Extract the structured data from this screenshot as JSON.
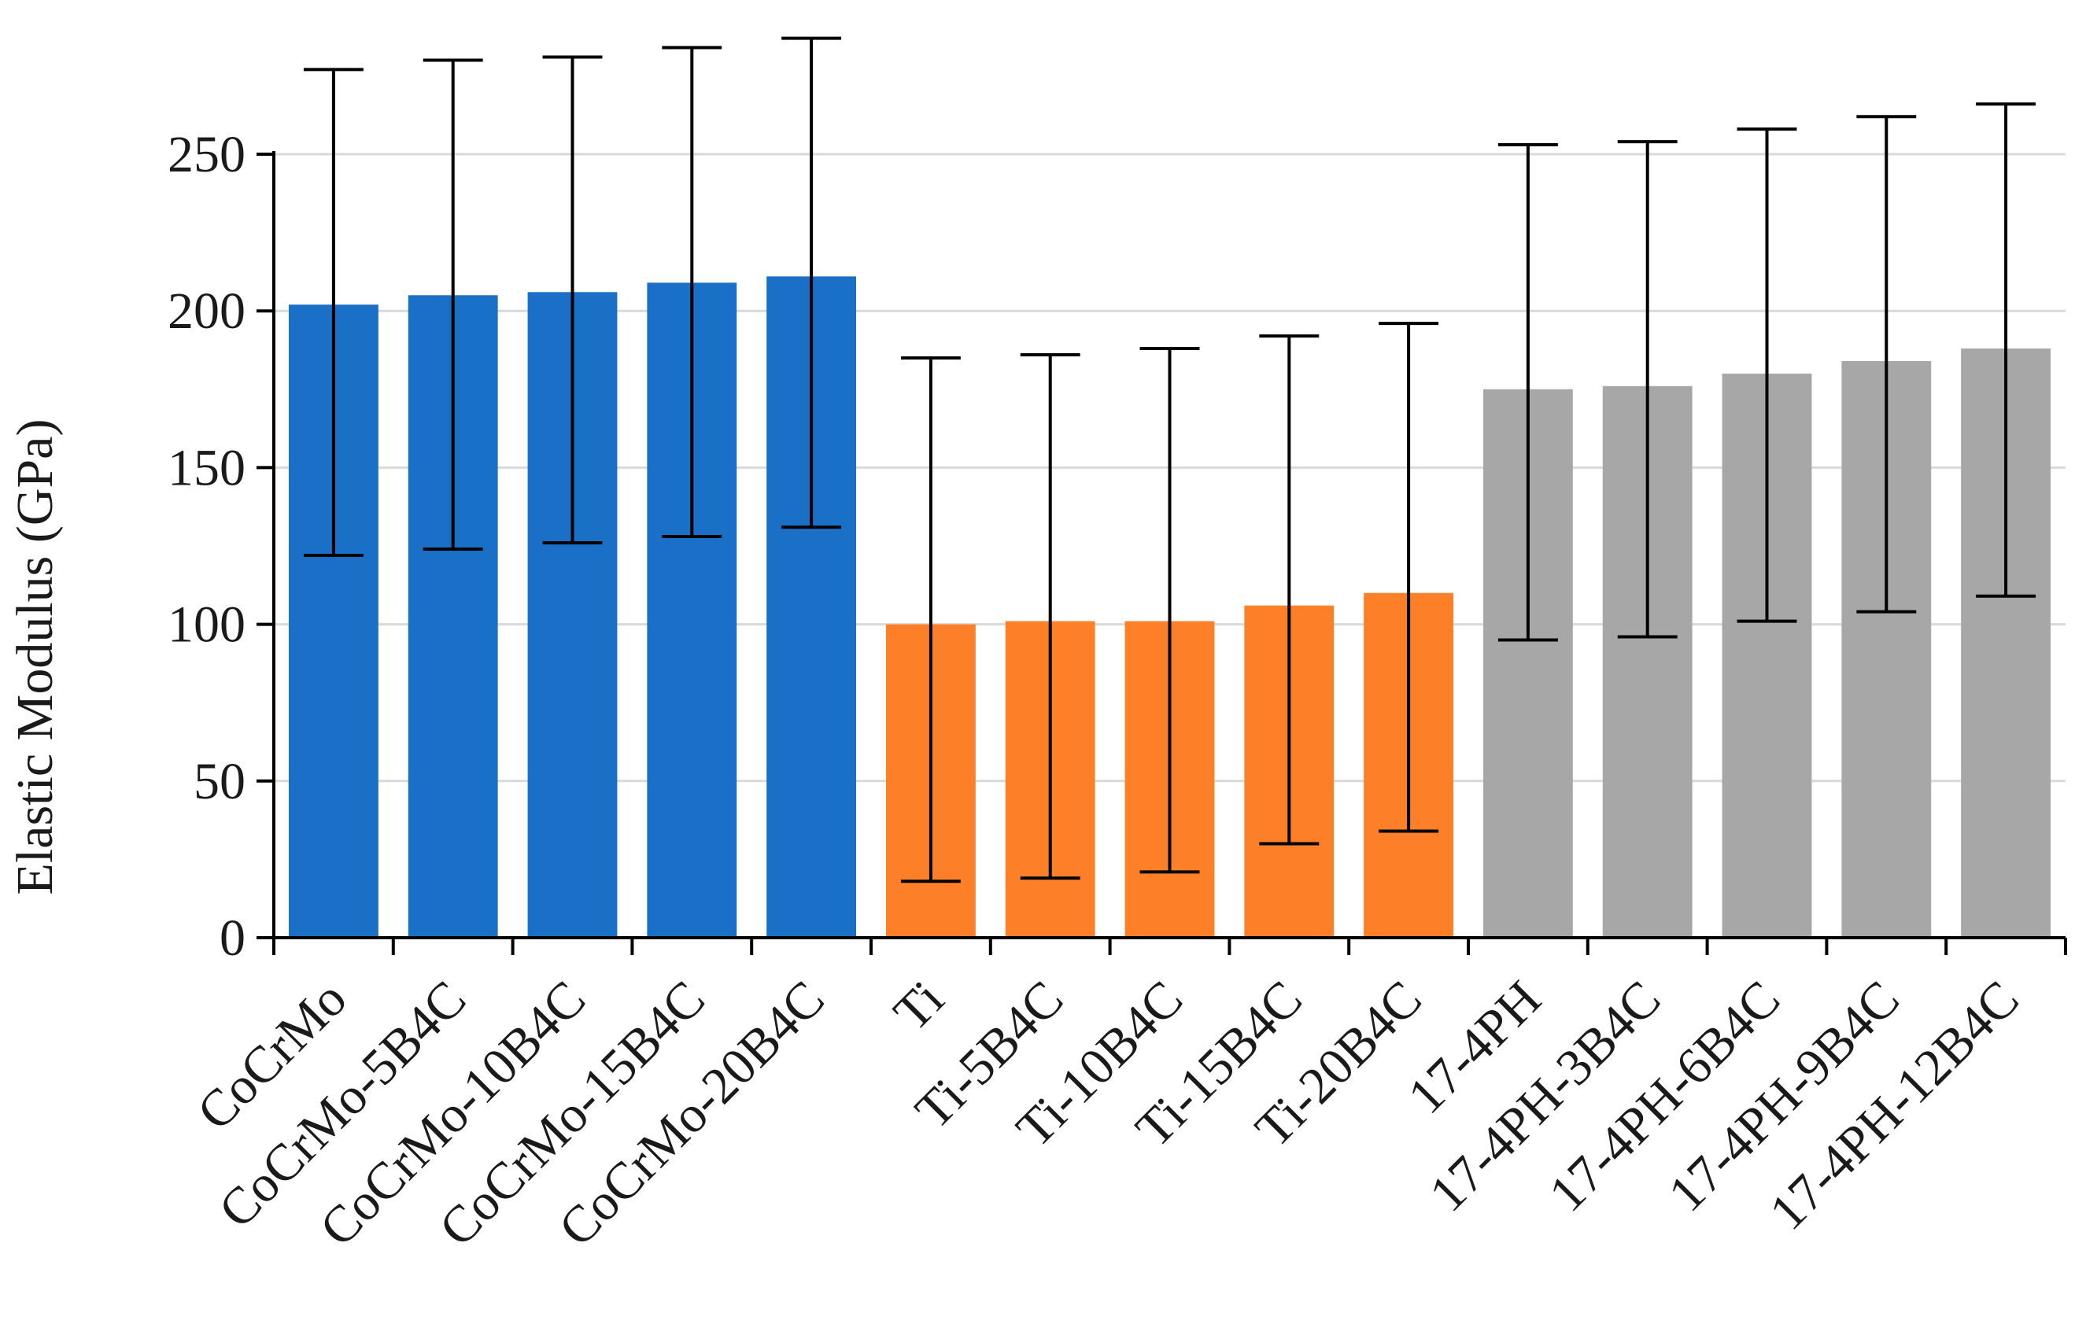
{
  "chart_data": {
    "type": "bar",
    "title": "",
    "xlabel": "",
    "ylabel": "Elastic Modulus (GPa)",
    "ylim": [
      0,
      250
    ],
    "yticks": [
      0,
      50,
      100,
      150,
      200,
      250
    ],
    "grid": true,
    "legend": "none",
    "categories": [
      "CoCrMo",
      "CoCrMo-5B4C",
      "CoCrMo-10B4C",
      "CoCrMo-15B4C",
      "CoCrMo-20B4C",
      "Ti",
      "Ti-5B4C",
      "Ti-10B4C",
      "Ti-15B4C",
      "Ti-20B4C",
      "17-4PH",
      "17-4PH-3B4C",
      "17-4PH-6B4C",
      "17-4PH-9B4C",
      "17-4PH-12B4C"
    ],
    "values": [
      202,
      205,
      206,
      209,
      211,
      100,
      101,
      101,
      106,
      110,
      175,
      176,
      180,
      184,
      188
    ],
    "error_upper": [
      277,
      280,
      281,
      284,
      287,
      185,
      186,
      188,
      192,
      196,
      253,
      254,
      258,
      262,
      266
    ],
    "error_lower": [
      122,
      124,
      126,
      128,
      131,
      18,
      19,
      21,
      30,
      34,
      95,
      96,
      101,
      104,
      109
    ],
    "bar_colors": [
      "#1a6fc7",
      "#1a6fc7",
      "#1a6fc7",
      "#1a6fc7",
      "#1a6fc7",
      "#fd7f27",
      "#fd7f27",
      "#fd7f27",
      "#fd7f27",
      "#fd7f27",
      "#a7a7a7",
      "#a7a7a7",
      "#a7a7a7",
      "#a7a7a7",
      "#a7a7a7"
    ]
  }
}
